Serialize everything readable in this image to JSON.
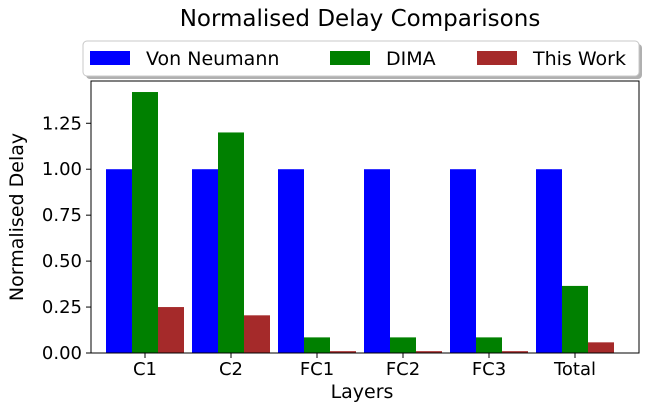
{
  "chart_data": {
    "type": "bar",
    "title": "Normalised Delay Comparisons",
    "xlabel": "Layers",
    "ylabel": "Normalised Delay",
    "categories": [
      "C1",
      "C2",
      "FC1",
      "FC2",
      "FC3",
      "Total"
    ],
    "series": [
      {
        "name": "Von Neumann",
        "color": "#0000ff",
        "values": [
          1.0,
          1.0,
          1.0,
          1.0,
          1.0,
          1.0
        ]
      },
      {
        "name": "DIMA",
        "color": "#008000",
        "values": [
          1.42,
          1.2,
          0.085,
          0.085,
          0.085,
          0.365
        ]
      },
      {
        "name": "This Work",
        "color": "#a52a2a",
        "values": [
          0.25,
          0.205,
          0.01,
          0.01,
          0.01,
          0.058
        ]
      }
    ],
    "ylim": [
      0,
      1.48
    ],
    "yticks": [
      0.0,
      0.25,
      0.5,
      0.75,
      1.0,
      1.25
    ],
    "ytick_labels": [
      "0.00",
      "0.25",
      "0.50",
      "0.75",
      "1.00",
      "1.25"
    ],
    "grid": false,
    "legend_position": "top-center, above the axes"
  }
}
